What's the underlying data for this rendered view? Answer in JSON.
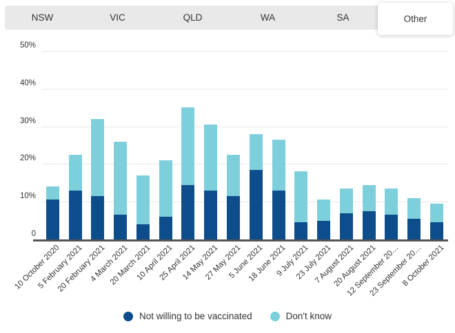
{
  "tabs": {
    "active": "Other",
    "items": [
      {
        "label": "NSW"
      },
      {
        "label": "VIC"
      },
      {
        "label": "QLD"
      },
      {
        "label": "WA"
      },
      {
        "label": "SA"
      },
      {
        "label": "Other"
      }
    ]
  },
  "chart_data": {
    "type": "bar",
    "stacked": true,
    "categories": [
      "10 October 2020",
      "5 February 2021",
      "20 February 2021",
      "4 March 2021",
      "20 March 2021",
      "10 April 2021",
      "25 April 2021",
      "14 May 2021",
      "27 May 2021",
      "5 June 2021",
      "18 June 2021",
      "9 July 2021",
      "23 July 2021",
      "7 August 2021",
      "20 August 2021",
      "12 September 20…",
      "23 September 20…",
      "8 October 2021"
    ],
    "series": [
      {
        "name": "Not willing to be vaccinated",
        "color": "#0d4d8c",
        "values": [
          10.5,
          13,
          11.5,
          6.5,
          4,
          6,
          14.5,
          13,
          11.5,
          18.5,
          13,
          4.5,
          5,
          7,
          7.5,
          6.5,
          5.5,
          4.5
        ]
      },
      {
        "name": "Don't know",
        "color": "#7dd0db",
        "values": [
          3.5,
          9.5,
          20.5,
          19.5,
          13,
          15,
          20.5,
          17.5,
          11,
          9.5,
          13.5,
          13.5,
          5.5,
          6.5,
          7,
          7,
          5.5,
          5
        ]
      }
    ],
    "ylabel": "",
    "xlabel": "",
    "ylim": [
      0,
      50
    ],
    "y_ticks": [
      "50%",
      "40%",
      "30%",
      "20%",
      "10%",
      "0"
    ],
    "grid": true,
    "legend_position": "bottom"
  },
  "colors": {
    "not_willing": "#0d4d8c",
    "dont_know": "#7dd0db",
    "tabbar_bg": "#e9e9e9",
    "active_tab_bg": "#ffffff",
    "gridline": "#e7e7e7",
    "axis_line": "#545454",
    "text": "#333333"
  }
}
